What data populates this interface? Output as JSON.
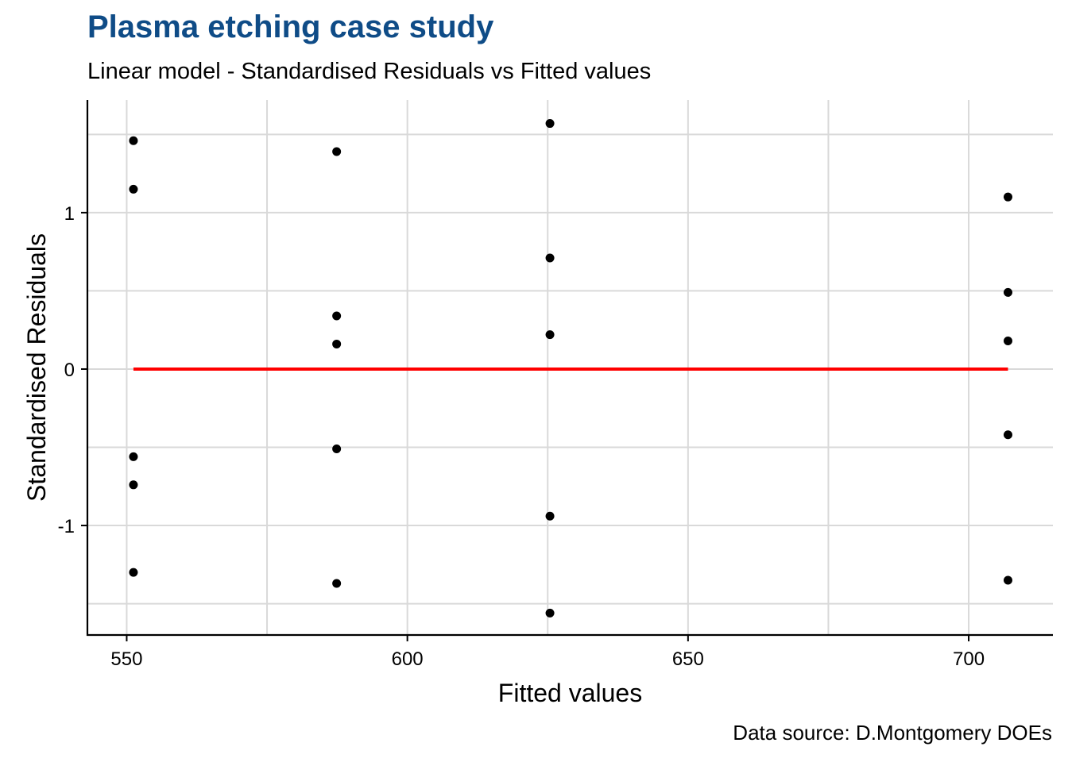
{
  "title": "Plasma etching case study",
  "subtitle": "Linear model - Standardised Residuals vs Fitted values",
  "caption": "Data source: D.Montgomery DOEs",
  "colors": {
    "title": "#0f4c87",
    "points": "#000000",
    "reference_line": "#ff0000",
    "grid": "#d9d9d9",
    "axis": "#000000"
  },
  "chart_data": {
    "type": "scatter",
    "title": "Plasma etching case study",
    "subtitle": "Linear model - Standardised Residuals vs Fitted values",
    "xlabel": "Fitted values",
    "ylabel": "Standardised Residuals",
    "xlim": [
      543,
      715
    ],
    "ylim": [
      -1.7,
      1.72
    ],
    "x_ticks": [
      550,
      600,
      650,
      700
    ],
    "x_tick_labels": [
      "550",
      "600",
      "650",
      "700"
    ],
    "y_ticks": [
      -1,
      0,
      1
    ],
    "y_tick_labels": [
      "-1",
      "0",
      "1"
    ],
    "x_minor_gridlines": [
      575,
      625,
      675
    ],
    "y_minor_gridlines": [
      -1.5,
      -0.5,
      0.5,
      1.5
    ],
    "grid": true,
    "reference_line": {
      "y": 0,
      "x_from": 551.2,
      "x_to": 707.0,
      "color": "#ff0000"
    },
    "points": [
      {
        "x": 551.2,
        "y": 1.46
      },
      {
        "x": 551.2,
        "y": 1.15
      },
      {
        "x": 551.2,
        "y": -0.56
      },
      {
        "x": 551.2,
        "y": -0.74
      },
      {
        "x": 551.2,
        "y": -1.3
      },
      {
        "x": 587.4,
        "y": 1.39
      },
      {
        "x": 587.4,
        "y": 0.34
      },
      {
        "x": 587.4,
        "y": 0.16
      },
      {
        "x": 587.4,
        "y": -0.51
      },
      {
        "x": 587.4,
        "y": -1.37
      },
      {
        "x": 625.4,
        "y": 1.57
      },
      {
        "x": 625.4,
        "y": 0.71
      },
      {
        "x": 625.4,
        "y": 0.22
      },
      {
        "x": 625.4,
        "y": -0.94
      },
      {
        "x": 625.4,
        "y": -1.56
      },
      {
        "x": 707.0,
        "y": 1.1
      },
      {
        "x": 707.0,
        "y": 0.49
      },
      {
        "x": 707.0,
        "y": 0.18
      },
      {
        "x": 707.0,
        "y": -0.42
      },
      {
        "x": 707.0,
        "y": -1.35
      }
    ]
  }
}
